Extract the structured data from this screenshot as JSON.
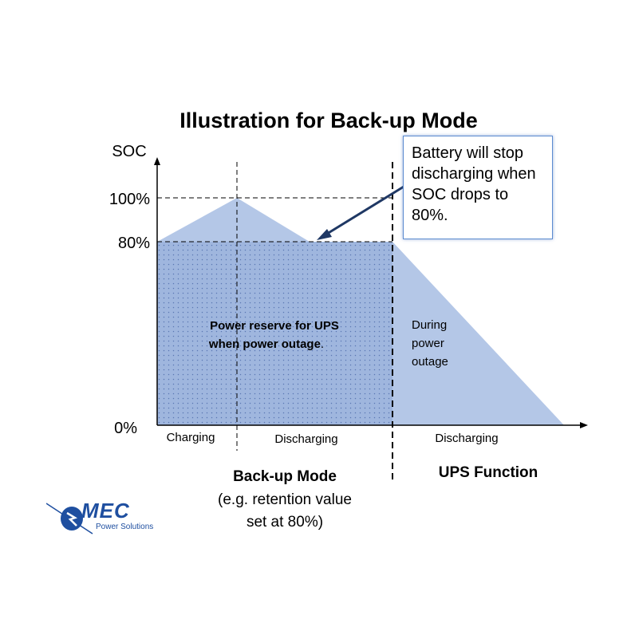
{
  "title": "Illustration for Back-up Mode",
  "y_axis_label": "SOC",
  "y_ticks": [
    "100%",
    "80%",
    "0%"
  ],
  "regions": {
    "reserve_label": "Power reserve for UPS when power outage.",
    "outage_label": "During power outage"
  },
  "x_phase_labels": [
    "Charging",
    "Discharging",
    "Discharging"
  ],
  "modes": {
    "backup_title": "Back-up Mode",
    "backup_note": "(e.g. retention value set at 80%)",
    "ups_title": "UPS Function"
  },
  "callout": "Battery will stop discharging when SOC drops to 80%.",
  "logo": {
    "name": "MEC",
    "tagline": "Power Solutions"
  },
  "colors": {
    "fill": "#b4c7e7",
    "reserve_fill": "#9fb6de",
    "dots": "#5b77b3",
    "arrow": "#1f3864",
    "brand": "#1f4fa0"
  },
  "chart_data": {
    "type": "area",
    "x_stages": [
      "start",
      "charge-peak",
      "back-up stop",
      "outage start",
      "outage end"
    ],
    "y": [
      80,
      100,
      80,
      80,
      0
    ],
    "ylim": [
      0,
      100
    ],
    "y_tick_values": [
      0,
      80,
      100
    ],
    "retention_value": 80
  }
}
